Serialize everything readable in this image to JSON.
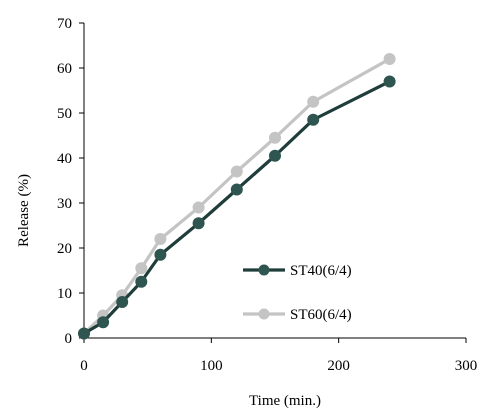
{
  "chart_data": {
    "type": "line",
    "xlabel": "Time (min.)",
    "ylabel": "Release (%)",
    "xlim": [
      0,
      300
    ],
    "ylim": [
      0,
      70
    ],
    "xticks": [
      0,
      100,
      200,
      300
    ],
    "yticks": [
      0,
      10,
      20,
      30,
      40,
      50,
      60,
      70
    ],
    "grid": false,
    "legend_position": "right",
    "series": [
      {
        "name": "ST40(6/4)",
        "color": "#1f3d3a",
        "marker_color": "#2f5550",
        "x": [
          0,
          15,
          30,
          45,
          60,
          90,
          120,
          150,
          180,
          240
        ],
        "y": [
          1,
          3.5,
          8,
          12.5,
          18.5,
          25.5,
          33,
          40.5,
          48.5,
          57
        ]
      },
      {
        "name": "ST60(6/4)",
        "color": "#c4c4c4",
        "marker_color": "#c4c4c4",
        "x": [
          0,
          15,
          30,
          45,
          60,
          90,
          120,
          150,
          180,
          240
        ],
        "y": [
          1,
          5,
          9.5,
          15.5,
          22,
          29,
          37,
          44.5,
          52.5,
          62
        ]
      }
    ]
  }
}
